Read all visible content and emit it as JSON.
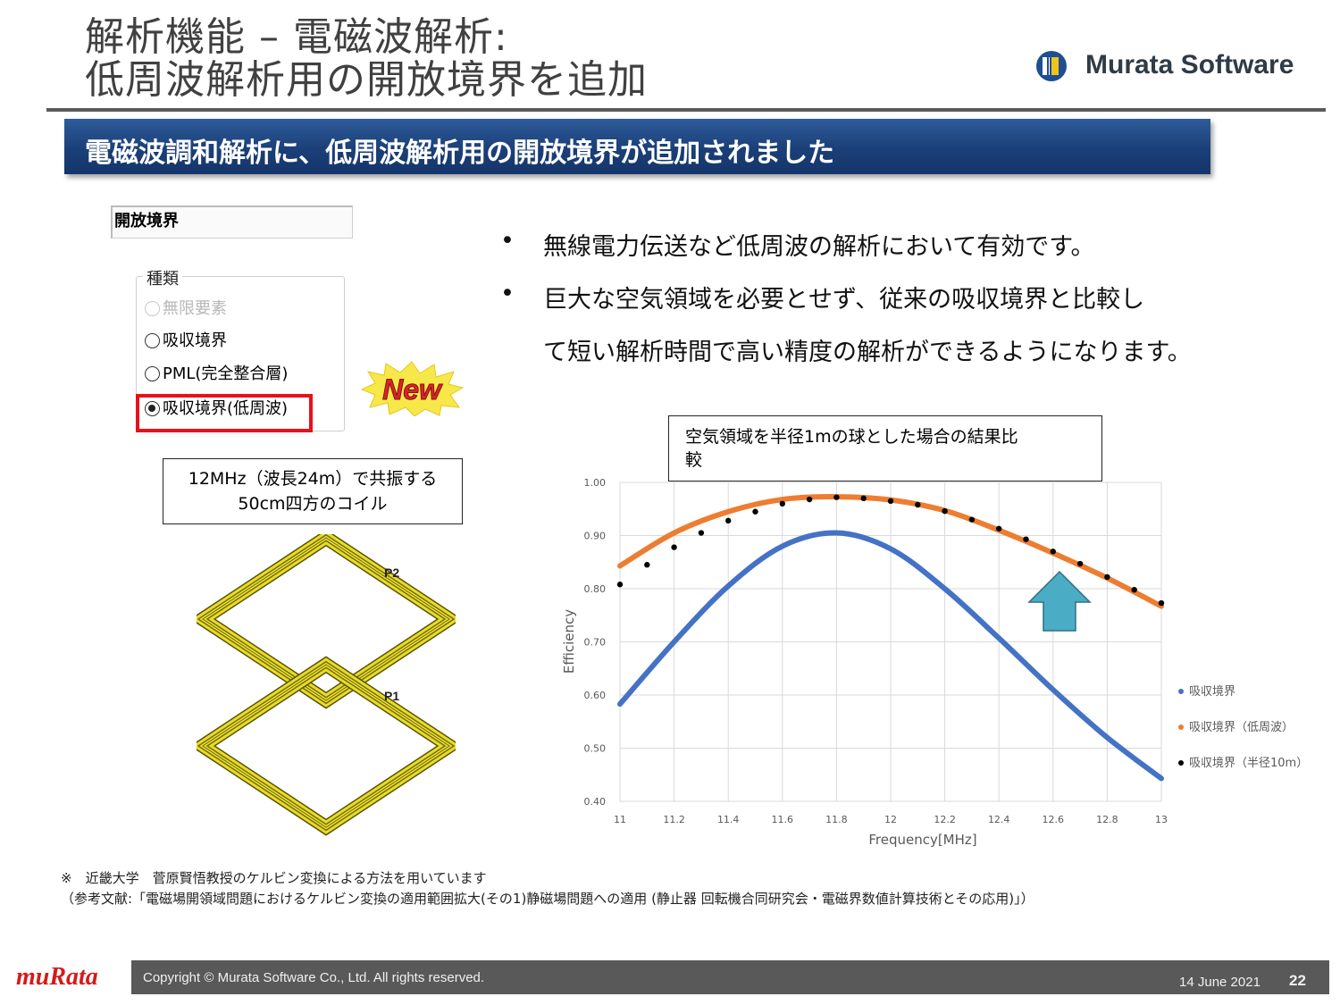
{
  "header": {
    "title_line1": "解析機能 – 電磁波解析:",
    "title_line2": "低周波解析用の開放境界を追加",
    "brand": "Murata Software",
    "brand_color": "#2f3b46"
  },
  "banner": {
    "text": "電磁波調和解析に、低周波解析用の開放境界が追加されました",
    "color": "#1b3f78"
  },
  "dialog": {
    "header": "開放境界",
    "group_label": "種類",
    "options": [
      {
        "label": "無限要素",
        "state": "disabled"
      },
      {
        "label": "吸収境界",
        "state": "unselected"
      },
      {
        "label": "PML(完全整合層)",
        "state": "unselected"
      },
      {
        "label": "吸収境界(低周波)",
        "state": "selected"
      }
    ],
    "highlight_color": "#e8101a"
  },
  "badge": {
    "text": "New"
  },
  "coil": {
    "caption_line1": "12MHz（波長24m）で共振する",
    "caption_line2": "50cm四方のコイル",
    "port1": "P1",
    "port2": "P2"
  },
  "bullets": [
    {
      "symbol": "•",
      "line1": "無線電力伝送など低周波の解析において有効です。"
    },
    {
      "symbol": "•",
      "line1": "巨大な空気領域を必要とせず、従来の吸収境界と比較し",
      "line2": "て短い解析時間で高い精度の解析ができるようになります。"
    }
  ],
  "chart_caption": {
    "line1": "空気領域を半径1mの球とした場合の結果比",
    "line2": "較"
  },
  "chart_data": {
    "type": "line",
    "xlabel": "Frequency[MHz]",
    "ylabel": "Efficiency",
    "xlim": [
      11,
      13
    ],
    "ylim": [
      0.4,
      1.0
    ],
    "x_ticks": [
      "11",
      "11.2",
      "11.4",
      "11.6",
      "11.8",
      "12",
      "12.2",
      "12.4",
      "12.6",
      "12.8",
      "13"
    ],
    "y_ticks": [
      "0.40",
      "0.50",
      "0.60",
      "0.70",
      "0.80",
      "0.90",
      "1.00"
    ],
    "grid": true,
    "legend_position": "right",
    "series": [
      {
        "name": "吸収境界",
        "color": "#4472c4",
        "style": "line",
        "x": [
          11.0,
          11.2,
          11.4,
          11.6,
          11.8,
          12.0,
          12.2,
          12.4,
          12.6,
          12.8,
          13.0
        ],
        "values": [
          0.583,
          0.7,
          0.805,
          0.88,
          0.905,
          0.875,
          0.8,
          0.707,
          0.61,
          0.52,
          0.443
        ]
      },
      {
        "name": "吸収境界（低周波）",
        "color": "#ed7d31",
        "style": "line",
        "x": [
          11.0,
          11.2,
          11.4,
          11.6,
          11.8,
          12.0,
          12.2,
          12.4,
          12.6,
          12.8,
          13.0
        ],
        "values": [
          0.843,
          0.905,
          0.945,
          0.968,
          0.973,
          0.967,
          0.947,
          0.91,
          0.867,
          0.82,
          0.767
        ]
      },
      {
        "name": "吸収境界（半径10m）",
        "color": "#000000",
        "style": "dots",
        "x": [
          11.0,
          11.1,
          11.2,
          11.3,
          11.4,
          11.5,
          11.6,
          11.7,
          11.8,
          11.9,
          12.0,
          12.1,
          12.2,
          12.3,
          12.4,
          12.5,
          12.6,
          12.7,
          12.8,
          12.9,
          13.0
        ],
        "values": [
          0.808,
          0.845,
          0.878,
          0.905,
          0.928,
          0.945,
          0.96,
          0.968,
          0.972,
          0.97,
          0.965,
          0.958,
          0.946,
          0.93,
          0.913,
          0.893,
          0.87,
          0.847,
          0.822,
          0.798,
          0.773
        ]
      }
    ]
  },
  "footnote": {
    "line1": "※　近畿大学　菅原賢悟教授のケルビン変換による方法を用いています",
    "line2": "（参考文献:「電磁場開領域問題におけるケルビン変換の適用範囲拡大(その1)静磁場問題への適用 (静止器 回転機合同研究会・電磁界数値計算技術とその応用)」）"
  },
  "footer": {
    "logo": "muRata",
    "copyright": "Copyright © Murata Software Co., Ltd. All rights reserved.",
    "date": "14 June 2021",
    "page": "22"
  }
}
